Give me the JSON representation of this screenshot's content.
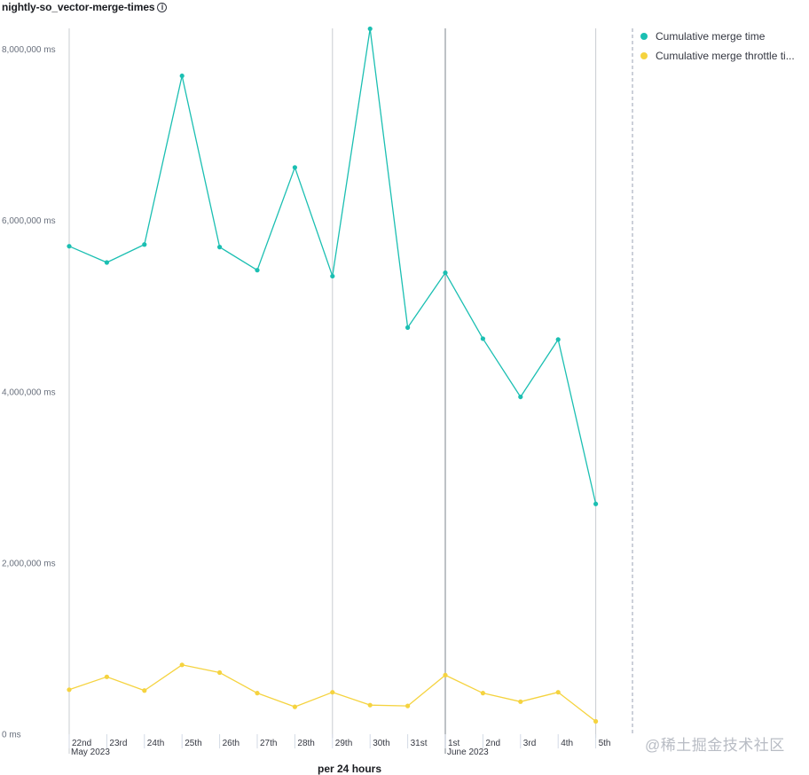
{
  "title": "nightly-so_vector-merge-times",
  "watermark": "@稀土掘金技术社区",
  "legend": [
    {
      "label": "Cumulative merge time",
      "color": "#1bbfb2"
    },
    {
      "label": "Cumulative merge throttle ti...",
      "color": "#f5d33f"
    }
  ],
  "chart_data": {
    "type": "line",
    "title": "nightly-so_vector-merge-times",
    "xlabel": "per 24 hours",
    "ylabel": "",
    "ylim": [
      0,
      8200000
    ],
    "y_ticks": [
      0,
      2000000,
      4000000,
      6000000,
      8000000
    ],
    "y_tick_labels": [
      "0 ms",
      "2,000,000 ms",
      "4,000,000 ms",
      "6,000,000 ms",
      "8,000,000 ms"
    ],
    "x": [
      "2023-05-22",
      "2023-05-23",
      "2023-05-24",
      "2023-05-25",
      "2023-05-26",
      "2023-05-27",
      "2023-05-28",
      "2023-05-29",
      "2023-05-30",
      "2023-05-31",
      "2023-06-01",
      "2023-06-02",
      "2023-06-03",
      "2023-06-04",
      "2023-06-05"
    ],
    "x_tick_labels": [
      "22nd",
      "23rd",
      "24th",
      "25th",
      "26th",
      "27th",
      "28th",
      "29th",
      "30th",
      "31st",
      "1st",
      "2nd",
      "3rd",
      "4th",
      "5th"
    ],
    "x_month_labels": [
      {
        "at": "2023-05-22",
        "label": "May 2023"
      },
      {
        "at": "2023-06-01",
        "label": "June 2023"
      }
    ],
    "series": [
      {
        "name": "Cumulative merge time",
        "color": "#1bbfb2",
        "values": [
          5700000,
          5510000,
          5720000,
          7690000,
          5690000,
          5420000,
          6620000,
          5350000,
          8240000,
          4750000,
          5390000,
          4620000,
          3940000,
          4610000,
          2690000
        ]
      },
      {
        "name": "Cumulative merge throttle time",
        "color": "#f5d33f",
        "values": [
          520000,
          670000,
          510000,
          810000,
          720000,
          480000,
          320000,
          490000,
          340000,
          330000,
          690000,
          480000,
          380000,
          490000,
          150000
        ]
      }
    ],
    "grid": false,
    "legend_position": "right"
  }
}
